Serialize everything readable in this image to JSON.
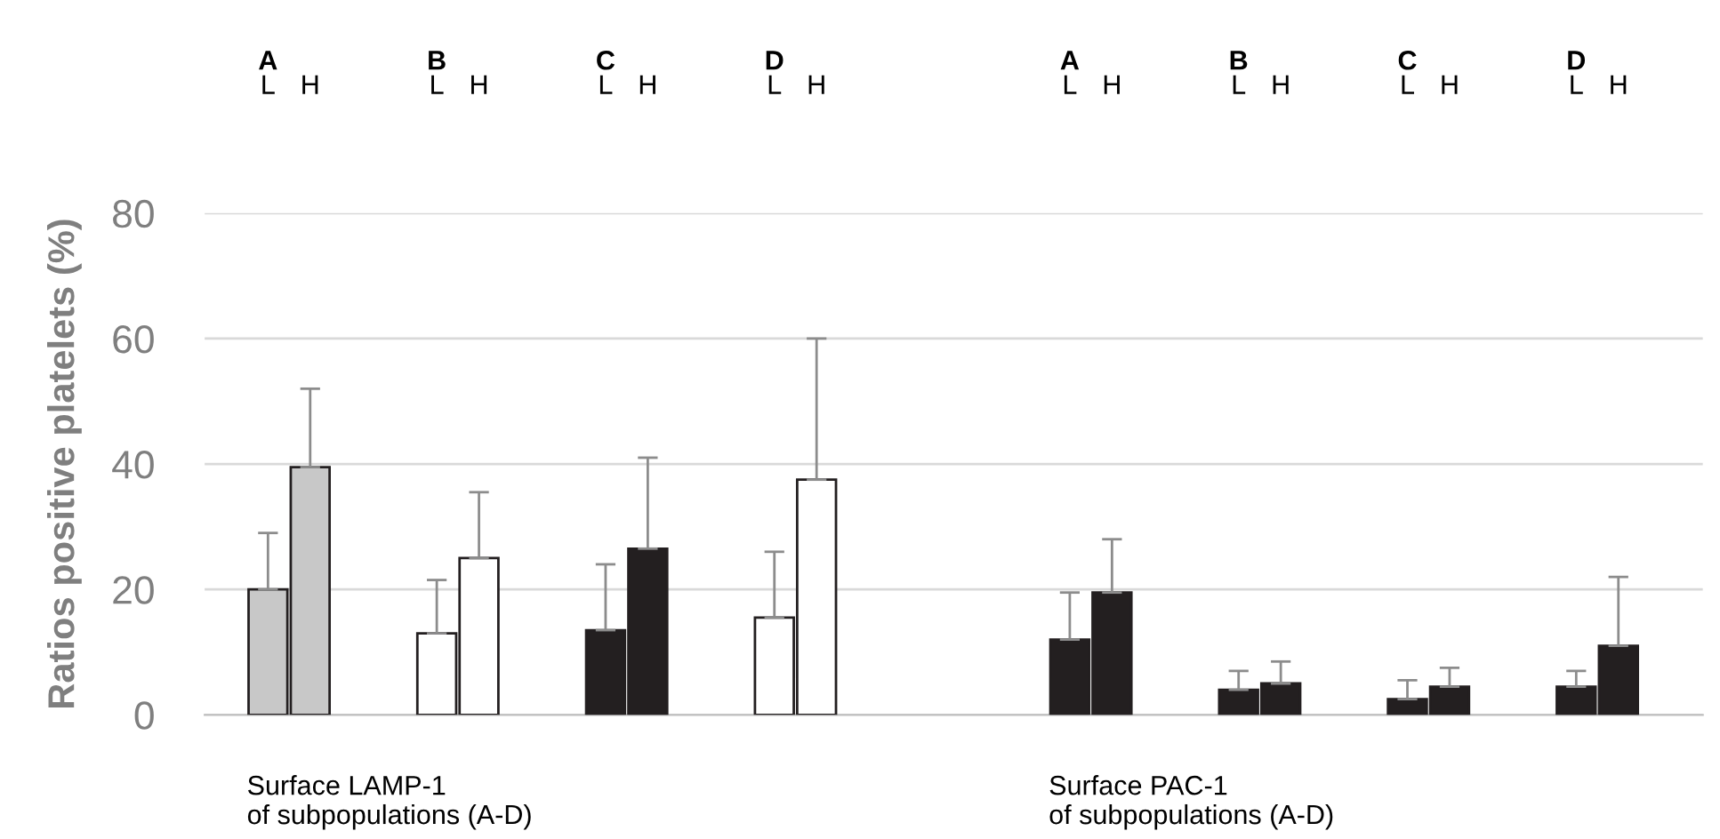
{
  "chart_data": {
    "type": "bar",
    "ylabel": "Ratios positive platelets (%)",
    "categories": [
      "L",
      "H",
      null,
      null,
      "L",
      "H",
      null,
      null,
      "L",
      "H",
      null,
      null,
      "L",
      "H",
      null,
      null,
      null,
      null,
      null,
      "L",
      "H",
      null,
      null,
      "L",
      "H",
      null,
      null,
      "L",
      "H",
      null,
      null,
      "L",
      "H"
    ],
    "series": [
      {
        "values": [
          20,
          39.5,
          null,
          null,
          13,
          25,
          null,
          null,
          13.5,
          26.5,
          null,
          null,
          15.5,
          37.5,
          null,
          null,
          null,
          null,
          null,
          12,
          19.5,
          null,
          null,
          4,
          5,
          null,
          null,
          2.5,
          4.5,
          null,
          null,
          4.5,
          11
        ],
        "colors": [
          "#c8c8c8",
          "#c8c8c8",
          null,
          null,
          "#ffffff",
          "#ffffff",
          null,
          null,
          "#231f20",
          "#231f20",
          null,
          null,
          "#ffffff",
          "#ffffff",
          null,
          null,
          null,
          null,
          null,
          "#231f20",
          "#231f20",
          null,
          null,
          "#231f20",
          "#231f20",
          null,
          null,
          "#231f20",
          "#231f20",
          null,
          null,
          "#231f20",
          "#231f20"
        ],
        "errors": [
          [
            20,
            29
          ],
          [
            39.5,
            52
          ],
          null,
          null,
          [
            13,
            21.5
          ],
          [
            25,
            35.5
          ],
          null,
          null,
          [
            13.5,
            24
          ],
          [
            26.5,
            41
          ],
          null,
          null,
          [
            15.5,
            26
          ],
          [
            37.5,
            60
          ],
          null,
          null,
          null,
          null,
          null,
          [
            12,
            19.5
          ],
          [
            19.5,
            28
          ],
          null,
          null,
          [
            4,
            7
          ],
          [
            5,
            8.5
          ],
          null,
          null,
          [
            2.5,
            5.5
          ],
          [
            4.5,
            7.5
          ],
          null,
          null,
          [
            4.5,
            7
          ],
          [
            11,
            22
          ]
        ]
      }
    ],
    "ylim": [
      0,
      80
    ],
    "yticks": [
      0,
      20,
      40,
      60,
      80
    ],
    "grid": "y",
    "annotations": [
      "A",
      "B",
      "C",
      "D",
      "A",
      "B",
      "C",
      "D",
      "Surface LAMP-1\nof subpopulations (A-D)",
      "Surface PAC-1\nof subpopulations (A-D)"
    ]
  }
}
